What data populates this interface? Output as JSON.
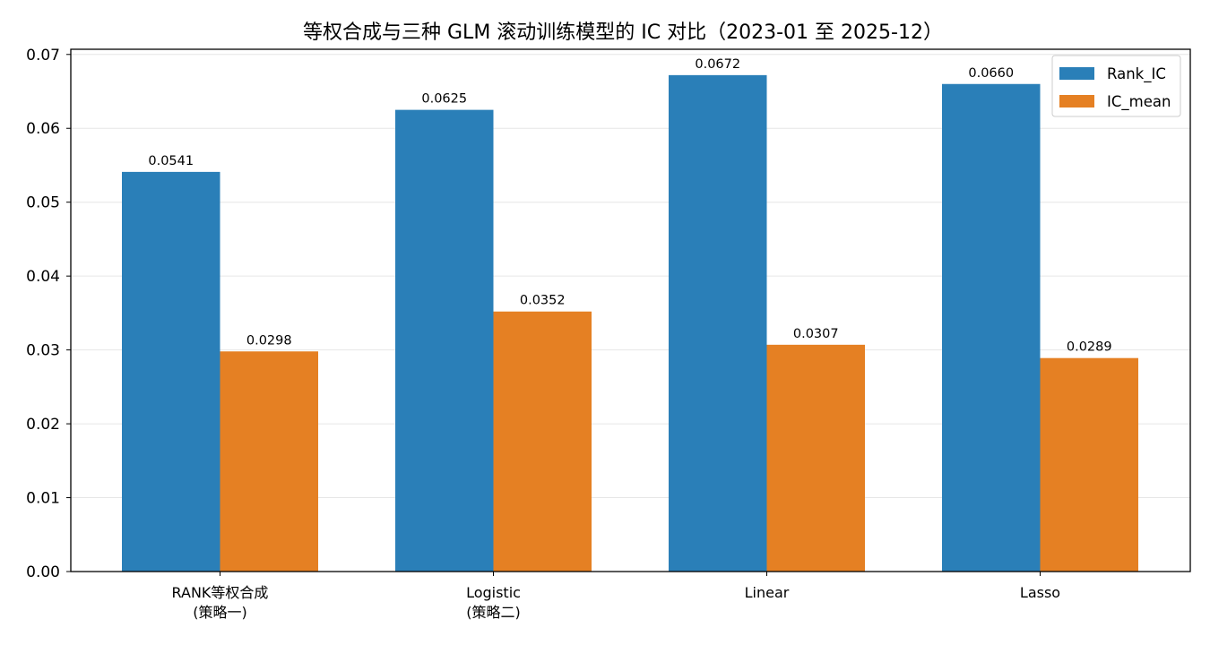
{
  "chart_data": {
    "type": "bar",
    "title": "等权合成与三种 GLM 滚动训练模型的 IC 对比（2023-01 至 2025-12）",
    "xlabel": "",
    "ylabel": "",
    "categories": [
      [
        "RANK等权合成",
        "(策略一)"
      ],
      [
        "Logistic",
        "(策略二)"
      ],
      [
        "Linear"
      ],
      [
        "Lasso"
      ]
    ],
    "series": [
      {
        "name": "Rank_IC",
        "color": "#2a7fb8",
        "values": [
          0.0541,
          0.0625,
          0.0672,
          0.066
        ],
        "labels": [
          "0.0541",
          "0.0625",
          "0.0672",
          "0.0660"
        ]
      },
      {
        "name": "IC_mean",
        "color": "#e58023",
        "values": [
          0.0298,
          0.0352,
          0.0307,
          0.0289
        ],
        "labels": [
          "0.0298",
          "0.0352",
          "0.0307",
          "0.0289"
        ]
      }
    ],
    "ylim": [
      0,
      0.0707
    ],
    "yticks": [
      "0.00",
      "0.01",
      "0.02",
      "0.03",
      "0.04",
      "0.05",
      "0.06",
      "0.07"
    ],
    "ytick_values": [
      0,
      0.01,
      0.02,
      0.03,
      0.04,
      0.05,
      0.06,
      0.07
    ],
    "grid": "horizontal",
    "legend_position": "top-right"
  }
}
